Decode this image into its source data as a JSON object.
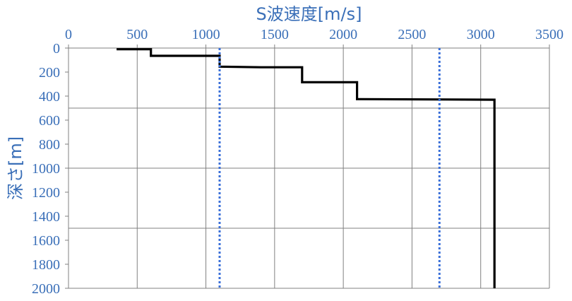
{
  "chart_data": {
    "type": "line",
    "title": "",
    "xlabel": "S波速度[m/s]",
    "ylabel": "深さ[m]",
    "xlim": [
      0,
      3500
    ],
    "ylim": [
      0,
      2000
    ],
    "y_inverted": true,
    "x_axis_position": "top",
    "x_ticks": [
      "0",
      "500",
      "1000",
      "1500",
      "2000",
      "2500",
      "3000",
      "3500"
    ],
    "y_ticks": [
      "0",
      "200",
      "400",
      "600",
      "800",
      "1000",
      "1200",
      "1400",
      "1600",
      "1800",
      "2000"
    ],
    "grid": true,
    "series": [
      {
        "name": "",
        "style": "solid",
        "color": "#000000",
        "x": [
          350,
          600,
          600,
          1100,
          1100,
          1400,
          1700,
          1700,
          2100,
          2100,
          3100,
          3100
        ],
        "y": [
          10,
          10,
          65,
          65,
          155,
          160,
          160,
          285,
          285,
          425,
          430,
          2000
        ]
      },
      {
        "name": "",
        "style": "dotted",
        "color": "#3a6fd8",
        "x": [
          1100,
          1100
        ],
        "y": [
          0,
          2000
        ]
      },
      {
        "name": "",
        "style": "dotted",
        "color": "#3a6fd8",
        "x": [
          2700,
          2700
        ],
        "y": [
          0,
          2000
        ]
      }
    ],
    "colors": {
      "text": "#3a6fb8",
      "grid": "#808080"
    }
  }
}
